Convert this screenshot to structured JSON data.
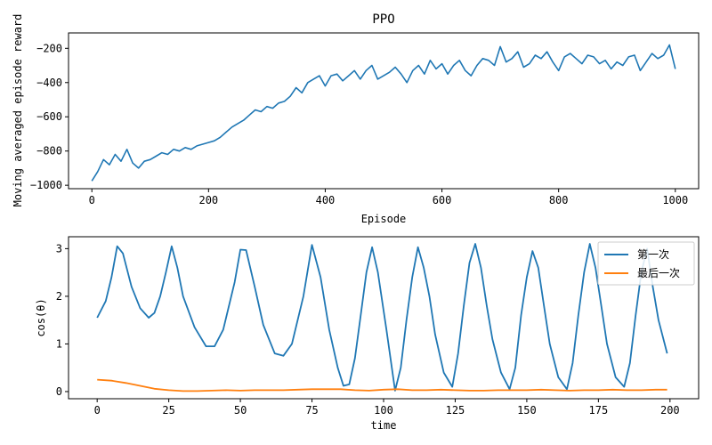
{
  "chart_data": [
    {
      "type": "line",
      "title": "PPO",
      "xlabel": "Episode",
      "ylabel": "Moving averaged episode reward",
      "xlim": [
        -40,
        1040
      ],
      "ylim": [
        -1020,
        -110
      ],
      "xticks": [
        0,
        200,
        400,
        600,
        800,
        1000
      ],
      "yticks": [
        -1000,
        -800,
        -600,
        -400,
        -200
      ],
      "color": "#1f77b4",
      "series": [
        {
          "name": "reward",
          "color": "#1f77b4",
          "x": [
            0,
            10,
            20,
            30,
            40,
            50,
            60,
            70,
            80,
            90,
            100,
            110,
            120,
            130,
            140,
            150,
            160,
            170,
            180,
            190,
            200,
            210,
            220,
            230,
            240,
            250,
            260,
            270,
            280,
            290,
            300,
            310,
            320,
            330,
            340,
            350,
            360,
            370,
            380,
            390,
            400,
            410,
            420,
            430,
            440,
            450,
            460,
            470,
            480,
            490,
            500,
            510,
            520,
            530,
            540,
            550,
            560,
            570,
            580,
            590,
            600,
            610,
            620,
            630,
            640,
            650,
            660,
            670,
            680,
            690,
            700,
            710,
            720,
            730,
            740,
            750,
            760,
            770,
            780,
            790,
            800,
            810,
            820,
            830,
            840,
            850,
            860,
            870,
            880,
            890,
            900,
            910,
            920,
            930,
            940,
            950,
            960,
            970,
            980,
            990,
            1000
          ],
          "y": [
            -975,
            -920,
            -850,
            -880,
            -820,
            -860,
            -790,
            -870,
            -900,
            -860,
            -850,
            -830,
            -810,
            -820,
            -790,
            -800,
            -780,
            -790,
            -770,
            -760,
            -750,
            -740,
            -720,
            -690,
            -660,
            -640,
            -620,
            -590,
            -560,
            -570,
            -540,
            -550,
            -520,
            -510,
            -480,
            -430,
            -460,
            -400,
            -380,
            -360,
            -420,
            -360,
            -350,
            -390,
            -360,
            -330,
            -380,
            -330,
            -300,
            -380,
            -360,
            -340,
            -310,
            -350,
            -400,
            -330,
            -300,
            -350,
            -270,
            -320,
            -290,
            -350,
            -300,
            -270,
            -330,
            -360,
            -300,
            -260,
            -270,
            -300,
            -190,
            -280,
            -260,
            -220,
            -310,
            -290,
            -240,
            -260,
            -220,
            -280,
            -330,
            -250,
            -230,
            -260,
            -290,
            -240,
            -250,
            -290,
            -270,
            -320,
            -280,
            -300,
            -250,
            -240,
            -330,
            -280,
            -230,
            -260,
            -240,
            -180,
            -320
          ]
        }
      ]
    },
    {
      "type": "line",
      "title": "",
      "xlabel": "time",
      "ylabel": "cos(θ)",
      "xlim": [
        -10,
        210
      ],
      "ylim": [
        -0.15,
        3.25
      ],
      "xticks": [
        0,
        25,
        50,
        75,
        100,
        125,
        150,
        175,
        200
      ],
      "yticks": [
        0,
        1,
        2,
        3
      ],
      "legend_position": "top-right",
      "series": [
        {
          "name": "第一次",
          "color": "#1f77b4",
          "x": [
            0,
            3,
            5,
            7,
            9,
            12,
            15,
            18,
            20,
            22,
            24,
            26,
            28,
            30,
            34,
            38,
            41,
            44,
            48,
            50,
            52,
            55,
            58,
            62,
            65,
            68,
            72,
            75,
            78,
            81,
            84,
            86,
            88,
            90,
            92,
            94,
            96,
            98,
            101,
            104,
            106,
            108,
            110,
            112,
            114,
            116,
            118,
            121,
            124,
            126,
            128,
            130,
            132,
            134,
            136,
            138,
            141,
            144,
            146,
            148,
            150,
            152,
            154,
            156,
            158,
            161,
            164,
            166,
            168,
            170,
            172,
            174,
            176,
            178,
            181,
            184,
            186,
            188,
            190,
            192,
            194,
            196,
            199
          ],
          "y": [
            1.55,
            1.9,
            2.4,
            3.05,
            2.9,
            2.2,
            1.75,
            1.55,
            1.65,
            2.0,
            2.5,
            3.05,
            2.6,
            2.0,
            1.35,
            0.95,
            0.95,
            1.3,
            2.3,
            2.98,
            2.97,
            2.2,
            1.4,
            0.8,
            0.75,
            1.0,
            2.0,
            3.08,
            2.4,
            1.3,
            0.5,
            0.12,
            0.15,
            0.7,
            1.6,
            2.5,
            3.03,
            2.5,
            1.3,
            0.02,
            0.5,
            1.5,
            2.4,
            3.03,
            2.6,
            2.0,
            1.2,
            0.4,
            0.1,
            0.8,
            1.8,
            2.7,
            3.1,
            2.6,
            1.8,
            1.1,
            0.4,
            0.05,
            0.5,
            1.6,
            2.4,
            2.95,
            2.6,
            1.8,
            1.0,
            0.3,
            0.05,
            0.6,
            1.6,
            2.5,
            3.1,
            2.6,
            1.8,
            1.0,
            0.3,
            0.1,
            0.6,
            1.6,
            2.5,
            3.0,
            2.2,
            1.5,
            0.8
          ]
        },
        {
          "name": "最后一次",
          "color": "#ff7f0e",
          "x": [
            0,
            5,
            10,
            15,
            20,
            25,
            30,
            35,
            40,
            45,
            50,
            55,
            60,
            65,
            70,
            75,
            80,
            85,
            90,
            95,
            100,
            105,
            110,
            115,
            120,
            125,
            130,
            135,
            140,
            145,
            150,
            155,
            160,
            165,
            170,
            175,
            180,
            185,
            190,
            195,
            199
          ],
          "y": [
            0.25,
            0.23,
            0.18,
            0.12,
            0.06,
            0.03,
            0.01,
            0.01,
            0.02,
            0.03,
            0.02,
            0.03,
            0.03,
            0.03,
            0.04,
            0.05,
            0.05,
            0.05,
            0.03,
            0.02,
            0.04,
            0.05,
            0.03,
            0.03,
            0.04,
            0.03,
            0.02,
            0.02,
            0.03,
            0.03,
            0.03,
            0.04,
            0.03,
            0.02,
            0.03,
            0.03,
            0.04,
            0.03,
            0.03,
            0.04,
            0.04
          ]
        }
      ]
    }
  ]
}
